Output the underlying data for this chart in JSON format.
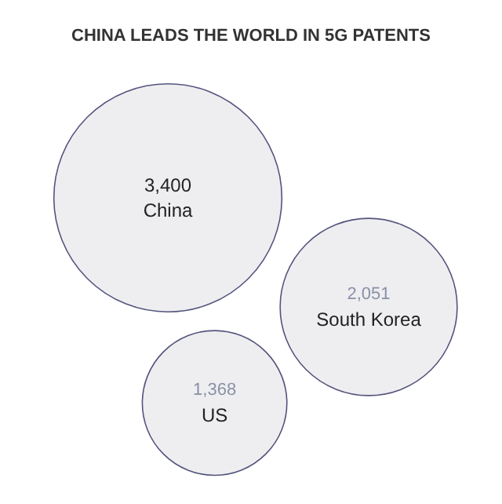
{
  "chart_data": {
    "type": "other",
    "title": "CHINA LEADS THE WORLD IN 5G PATENTS",
    "categories": [
      "China",
      "South Korea",
      "US"
    ],
    "values": [
      3400,
      2051,
      1368
    ],
    "colors": [
      "#eeeef0",
      "#eeeef0",
      "#eeeef0"
    ],
    "value_labels": [
      "3,400",
      "2,051",
      "1,368"
    ]
  }
}
